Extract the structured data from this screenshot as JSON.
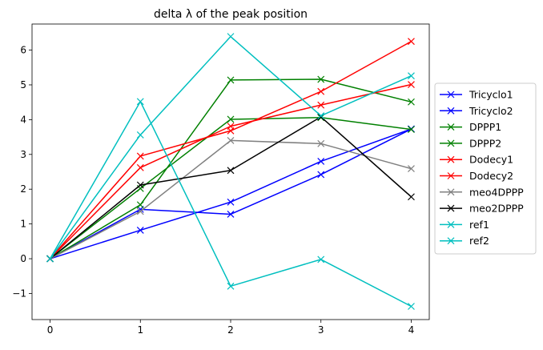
{
  "chart_data": {
    "type": "line",
    "title": "delta λ of the peak position",
    "xlabel": "",
    "ylabel": "",
    "x": [
      0,
      1,
      2,
      3,
      4
    ],
    "x_ticks": [
      "0",
      "1",
      "2",
      "3",
      "4"
    ],
    "y_ticks": [
      "−1",
      "0",
      "1",
      "2",
      "3",
      "4",
      "5",
      "6"
    ],
    "y_tick_values": [
      -1,
      0,
      1,
      2,
      3,
      4,
      5,
      6
    ],
    "xlim": [
      -0.2,
      4.2
    ],
    "ylim": [
      -1.75,
      6.75
    ],
    "grid": false,
    "marker": "x",
    "legend_position": "center-right, outside plot",
    "series": [
      {
        "name": "Tricyclo1",
        "color": "#0000ff",
        "values": [
          0,
          0.82,
          1.63,
          2.8,
          3.73
        ]
      },
      {
        "name": "Tricyclo2",
        "color": "#0000ff",
        "values": [
          0,
          1.42,
          1.28,
          2.42,
          3.73
        ]
      },
      {
        "name": "DPPP1",
        "color": "#008000",
        "values": [
          0,
          1.55,
          5.14,
          5.16,
          4.51
        ]
      },
      {
        "name": "DPPP2",
        "color": "#008000",
        "values": [
          0,
          2.02,
          4.01,
          4.06,
          3.72
        ]
      },
      {
        "name": "Dodecy1",
        "color": "#ff0000",
        "values": [
          0,
          2.95,
          3.68,
          4.81,
          6.25
        ]
      },
      {
        "name": "Dodecy2",
        "color": "#ff0000",
        "values": [
          0,
          2.62,
          3.81,
          4.42,
          5.01
        ]
      },
      {
        "name": "meo4DPPP",
        "color": "#808080",
        "values": [
          0,
          1.36,
          3.4,
          3.31,
          2.59
        ]
      },
      {
        "name": "meo2DPPP",
        "color": "#000000",
        "values": [
          0,
          2.12,
          2.54,
          4.08,
          1.78
        ]
      },
      {
        "name": "ref1",
        "color": "#00bfbf",
        "values": [
          0,
          4.52,
          -0.79,
          -0.02,
          -1.37
        ]
      },
      {
        "name": "ref2",
        "color": "#00bfbf",
        "values": [
          0,
          3.56,
          6.39,
          4.11,
          5.26
        ]
      }
    ]
  }
}
